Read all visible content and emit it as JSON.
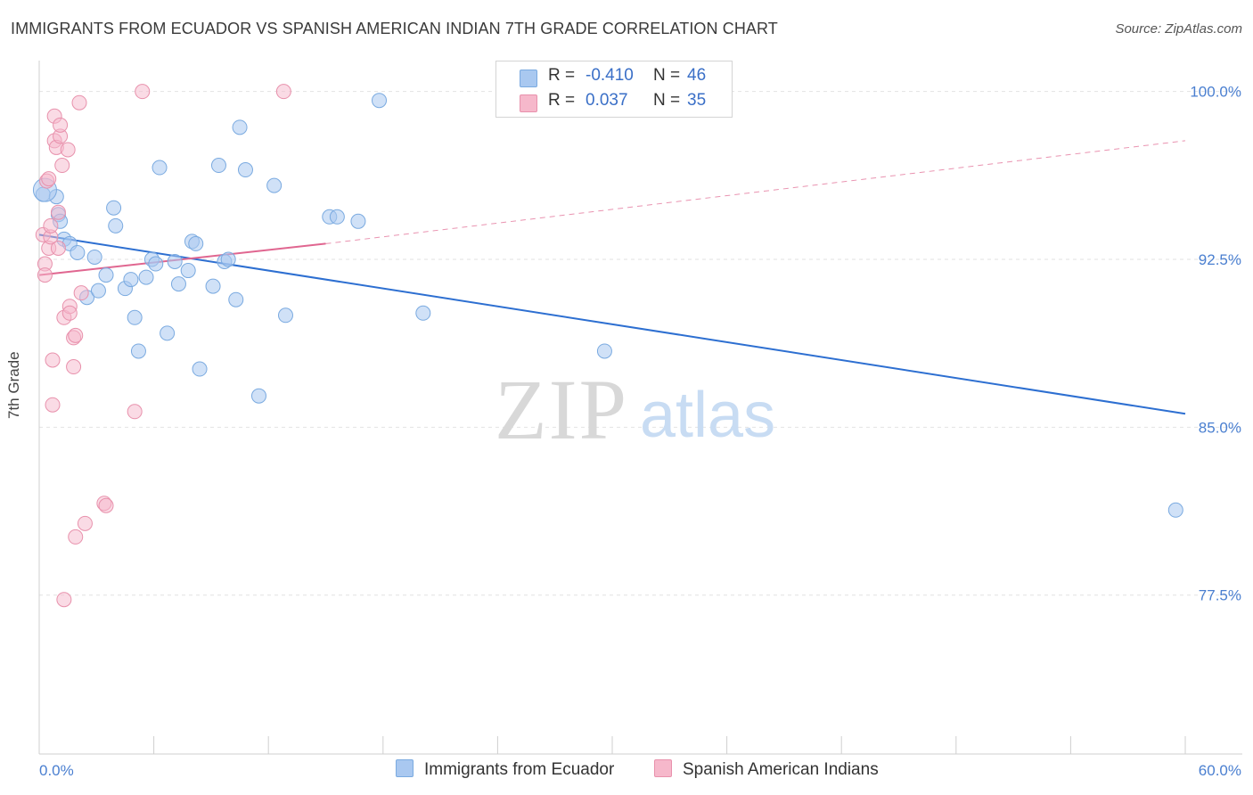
{
  "header": {
    "title": "IMMIGRANTS FROM ECUADOR VS SPANISH AMERICAN INDIAN 7TH GRADE CORRELATION CHART",
    "source": "Source: ZipAtlas.com"
  },
  "watermark": {
    "zip": "ZIP",
    "atlas": "atlas"
  },
  "legend": {
    "rows": [
      {
        "r_label": "R =",
        "r_value": "-0.410",
        "n_label": "N =",
        "n_value": "46",
        "color": "#a9c8f0"
      },
      {
        "r_label": "R =",
        "r_value": "0.037",
        "n_label": "N =",
        "n_value": "35",
        "color": "#f6b8cb"
      }
    ]
  },
  "colors": {
    "blue_fill": "#a9c8f0",
    "blue_stroke": "#7aaae0",
    "blue_line": "#2d6fd1",
    "pink_fill": "#f6b8cb",
    "pink_stroke": "#e891ac",
    "pink_line": "#e06690",
    "tick_text": "#4a7fd0",
    "grid": "#e2e2e2"
  },
  "chart_data": {
    "type": "scatter",
    "title": "IMMIGRANTS FROM ECUADOR VS SPANISH AMERICAN INDIAN 7TH GRADE CORRELATION CHART",
    "xlabel": "",
    "ylabel": "7th Grade",
    "xlim": [
      0,
      60
    ],
    "ylim": [
      70.4,
      101.3
    ],
    "x_tick_labels": [
      {
        "value": 0,
        "label": "0.0%"
      },
      {
        "value": 60,
        "label": "60.0%"
      }
    ],
    "x_minor_ticks": [
      6,
      12,
      18,
      24,
      30,
      36,
      42,
      48,
      54,
      60
    ],
    "y_ticks": [
      {
        "value": 100.0,
        "label": "100.0%"
      },
      {
        "value": 92.5,
        "label": "92.5%"
      },
      {
        "value": 85.0,
        "label": "85.0%"
      },
      {
        "value": 77.5,
        "label": "77.5%"
      }
    ],
    "grid": true,
    "legend_position": "top-center",
    "series": [
      {
        "name": "Immigrants from Ecuador",
        "color": "#a9c8f0",
        "trend": {
          "x": [
            0,
            60
          ],
          "y": [
            93.6,
            85.6
          ],
          "style": "solid"
        },
        "points": [
          [
            0.2,
            95.4
          ],
          [
            0.9,
            95.3
          ],
          [
            1.0,
            94.5
          ],
          [
            1.1,
            94.2
          ],
          [
            1.3,
            93.4
          ],
          [
            1.6,
            93.2
          ],
          [
            2.0,
            92.8
          ],
          [
            2.5,
            90.8
          ],
          [
            2.9,
            92.6
          ],
          [
            3.1,
            91.1
          ],
          [
            3.5,
            91.8
          ],
          [
            3.9,
            94.8
          ],
          [
            4.0,
            94.0
          ],
          [
            4.5,
            91.2
          ],
          [
            4.8,
            91.6
          ],
          [
            5.0,
            89.9
          ],
          [
            5.2,
            88.4
          ],
          [
            5.6,
            91.7
          ],
          [
            5.9,
            92.5
          ],
          [
            6.1,
            92.3
          ],
          [
            6.3,
            96.6
          ],
          [
            6.7,
            89.2
          ],
          [
            7.1,
            92.4
          ],
          [
            7.3,
            91.4
          ],
          [
            7.8,
            92.0
          ],
          [
            8.0,
            93.3
          ],
          [
            8.2,
            93.2
          ],
          [
            8.4,
            87.6
          ],
          [
            9.1,
            91.3
          ],
          [
            9.4,
            96.7
          ],
          [
            9.7,
            92.4
          ],
          [
            9.9,
            92.5
          ],
          [
            10.3,
            90.7
          ],
          [
            10.5,
            98.4
          ],
          [
            10.8,
            96.5
          ],
          [
            11.5,
            86.4
          ],
          [
            12.3,
            95.8
          ],
          [
            12.9,
            90.0
          ],
          [
            15.2,
            94.4
          ],
          [
            15.6,
            94.4
          ],
          [
            16.7,
            94.2
          ],
          [
            17.8,
            99.6
          ],
          [
            20.1,
            90.1
          ],
          [
            29.6,
            88.4
          ],
          [
            59.5,
            81.3
          ],
          [
            0.3,
            95.6
          ]
        ]
      },
      {
        "name": "Spanish American Indians",
        "color": "#f6b8cb",
        "trend": {
          "x": [
            0,
            15.0,
            60
          ],
          "y": [
            91.8,
            93.2,
            97.8
          ],
          "style": "solid-then-dashed"
        },
        "points": [
          [
            0.2,
            93.6
          ],
          [
            0.3,
            92.3
          ],
          [
            0.3,
            91.8
          ],
          [
            0.4,
            96.0
          ],
          [
            0.5,
            96.1
          ],
          [
            0.5,
            93.0
          ],
          [
            0.6,
            93.5
          ],
          [
            0.7,
            88.0
          ],
          [
            0.7,
            86.0
          ],
          [
            0.8,
            98.9
          ],
          [
            0.8,
            97.8
          ],
          [
            0.9,
            97.5
          ],
          [
            1.0,
            93.0
          ],
          [
            1.0,
            94.6
          ],
          [
            1.1,
            98.0
          ],
          [
            1.1,
            98.5
          ],
          [
            1.2,
            96.7
          ],
          [
            1.3,
            89.9
          ],
          [
            1.3,
            77.3
          ],
          [
            1.5,
            97.4
          ],
          [
            1.6,
            90.4
          ],
          [
            1.6,
            90.1
          ],
          [
            1.8,
            89.0
          ],
          [
            1.8,
            87.7
          ],
          [
            1.9,
            89.1
          ],
          [
            1.9,
            80.1
          ],
          [
            2.1,
            99.5
          ],
          [
            2.2,
            91.0
          ],
          [
            2.4,
            80.7
          ],
          [
            3.4,
            81.6
          ],
          [
            3.5,
            81.5
          ],
          [
            5.0,
            85.7
          ],
          [
            5.4,
            100.0
          ],
          [
            12.8,
            100.0
          ],
          [
            0.6,
            94.0
          ]
        ]
      }
    ]
  },
  "bottom_legend": {
    "items": [
      {
        "label": "Immigrants from Ecuador",
        "color": "#a9c8f0"
      },
      {
        "label": "Spanish American Indians",
        "color": "#f6b8cb"
      }
    ]
  }
}
